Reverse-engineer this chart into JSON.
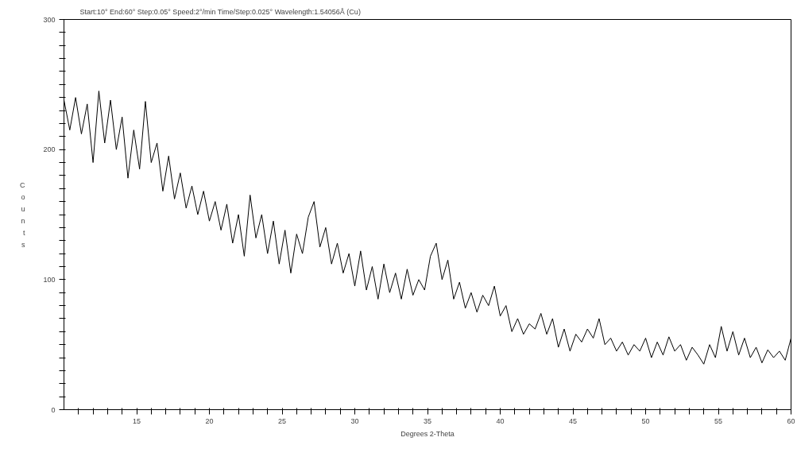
{
  "chart_data": {
    "type": "line",
    "title": "Start:10° End:60° Step:0.05° Speed:2°/min Time/Step:0.025° Wavelength:1.54056Å (Cu)",
    "xlabel": "Degrees 2-Theta",
    "ylabel": "Counts",
    "x": [
      10,
      10.4,
      10.8,
      11.2,
      11.6,
      12,
      12.4,
      12.8,
      13.2,
      13.6,
      14,
      14.4,
      14.8,
      15.2,
      15.6,
      16,
      16.4,
      16.8,
      17.2,
      17.6,
      18,
      18.4,
      18.8,
      19.2,
      19.6,
      20,
      20.4,
      20.8,
      21.2,
      21.6,
      22,
      22.4,
      22.8,
      23.2,
      23.6,
      24,
      24.4,
      24.8,
      25.2,
      25.6,
      26,
      26.4,
      26.8,
      27.2,
      27.6,
      28,
      28.4,
      28.8,
      29.2,
      29.6,
      30,
      30.4,
      30.8,
      31.2,
      31.6,
      32,
      32.4,
      32.8,
      33.2,
      33.6,
      34,
      34.4,
      34.8,
      35.2,
      35.6,
      36,
      36.4,
      36.8,
      37.2,
      37.6,
      38,
      38.4,
      38.8,
      39.2,
      39.6,
      40,
      40.4,
      40.8,
      41.2,
      41.6,
      42,
      42.4,
      42.8,
      43.2,
      43.6,
      44,
      44.4,
      44.8,
      45.2,
      45.6,
      46,
      46.4,
      46.8,
      47.2,
      47.6,
      48,
      48.4,
      48.8,
      49.2,
      49.6,
      50,
      50.4,
      50.8,
      51.2,
      51.6,
      52,
      52.4,
      52.8,
      53.2,
      53.6,
      54,
      54.4,
      54.8,
      55.2,
      55.6,
      56,
      56.4,
      56.8,
      57.2,
      57.6,
      58,
      58.4,
      58.8,
      59.2,
      59.6,
      60
    ],
    "series": [
      {
        "color": "#000000",
        "values": [
          238,
          215,
          240,
          212,
          235,
          190,
          245,
          205,
          238,
          200,
          225,
          178,
          215,
          185,
          237,
          190,
          205,
          168,
          195,
          162,
          182,
          155,
          172,
          150,
          168,
          145,
          160,
          138,
          158,
          128,
          150,
          118,
          165,
          132,
          150,
          120,
          145,
          112,
          138,
          105,
          135,
          120,
          148,
          160,
          125,
          140,
          112,
          128,
          105,
          120,
          95,
          122,
          92,
          110,
          85,
          112,
          90,
          105,
          85,
          108,
          88,
          100,
          92,
          118,
          128,
          100,
          115,
          85,
          98,
          78,
          90,
          75,
          88,
          80,
          95,
          72,
          80,
          60,
          70,
          58,
          66,
          62,
          74,
          58,
          70,
          48,
          62,
          45,
          58,
          52,
          62,
          55,
          70,
          50,
          55,
          45,
          52,
          42,
          50,
          45,
          55,
          40,
          52,
          42,
          56,
          45,
          50,
          38,
          48,
          42,
          35,
          50,
          40,
          64,
          45,
          60,
          42,
          55,
          40,
          48,
          36,
          46,
          40,
          45,
          38,
          55
        ]
      }
    ],
    "xlim": [
      10,
      60
    ],
    "ylim": [
      0,
      300
    ],
    "xticks": [
      {
        "value": 11,
        "label": null
      },
      {
        "value": 12,
        "label": null
      },
      {
        "value": 13,
        "label": null
      },
      {
        "value": 14,
        "label": null
      },
      15,
      {
        "value": 16,
        "label": null
      },
      {
        "value": 17,
        "label": null
      },
      {
        "value": 18,
        "label": null
      },
      {
        "value": 19,
        "label": null
      },
      20,
      {
        "value": 21,
        "label": null
      },
      {
        "value": 22,
        "label": null
      },
      {
        "value": 23,
        "label": null
      },
      {
        "value": 24,
        "label": null
      },
      25,
      {
        "value": 26,
        "label": null
      },
      {
        "value": 27,
        "label": null
      },
      {
        "value": 28,
        "label": null
      },
      {
        "value": 29,
        "label": null
      },
      30,
      {
        "value": 31,
        "label": null
      },
      {
        "value": 32,
        "label": null
      },
      {
        "value": 33,
        "label": null
      },
      {
        "value": 34,
        "label": null
      },
      35,
      {
        "value": 36,
        "label": null
      },
      {
        "value": 37,
        "label": null
      },
      {
        "value": 38,
        "label": null
      },
      {
        "value": 39,
        "label": null
      },
      40,
      {
        "value": 41,
        "label": null
      },
      {
        "value": 42,
        "label": null
      },
      {
        "value": 43,
        "label": null
      },
      {
        "value": 44,
        "label": null
      },
      45,
      {
        "value": 46,
        "label": null
      },
      {
        "value": 47,
        "label": null
      },
      {
        "value": 48,
        "label": null
      },
      {
        "value": 49,
        "label": null
      },
      50,
      {
        "value": 51,
        "label": null
      },
      {
        "value": 52,
        "label": null
      },
      {
        "value": 53,
        "label": null
      },
      {
        "value": 54,
        "label": null
      },
      55,
      {
        "value": 56,
        "label": null
      },
      {
        "value": 57,
        "label": null
      },
      {
        "value": 58,
        "label": null
      },
      {
        "value": 59,
        "label": null
      },
      60
    ],
    "yticks": [
      0,
      {
        "value": 10,
        "label": null
      },
      {
        "value": 20,
        "label": null
      },
      {
        "value": 30,
        "label": null
      },
      {
        "value": 40,
        "label": null
      },
      {
        "value": 50,
        "label": null
      },
      {
        "value": 60,
        "label": null
      },
      {
        "value": 70,
        "label": null
      },
      {
        "value": 80,
        "label": null
      },
      {
        "value": 90,
        "label": null
      },
      100,
      {
        "value": 110,
        "label": null
      },
      {
        "value": 120,
        "label": null
      },
      {
        "value": 130,
        "label": null
      },
      {
        "value": 140,
        "label": null
      },
      {
        "value": 150,
        "label": null
      },
      {
        "value": 160,
        "label": null
      },
      {
        "value": 170,
        "label": null
      },
      {
        "value": 180,
        "label": null
      },
      {
        "value": 190,
        "label": null
      },
      200,
      {
        "value": 210,
        "label": null
      },
      {
        "value": 220,
        "label": null
      },
      {
        "value": 230,
        "label": null
      },
      {
        "value": 240,
        "label": null
      },
      {
        "value": 250,
        "label": null
      },
      {
        "value": 260,
        "label": null
      },
      {
        "value": 270,
        "label": null
      },
      {
        "value": 280,
        "label": null
      },
      {
        "value": 290,
        "label": null
      },
      300
    ],
    "grid": false,
    "marker": "none",
    "line_style": "solid"
  }
}
